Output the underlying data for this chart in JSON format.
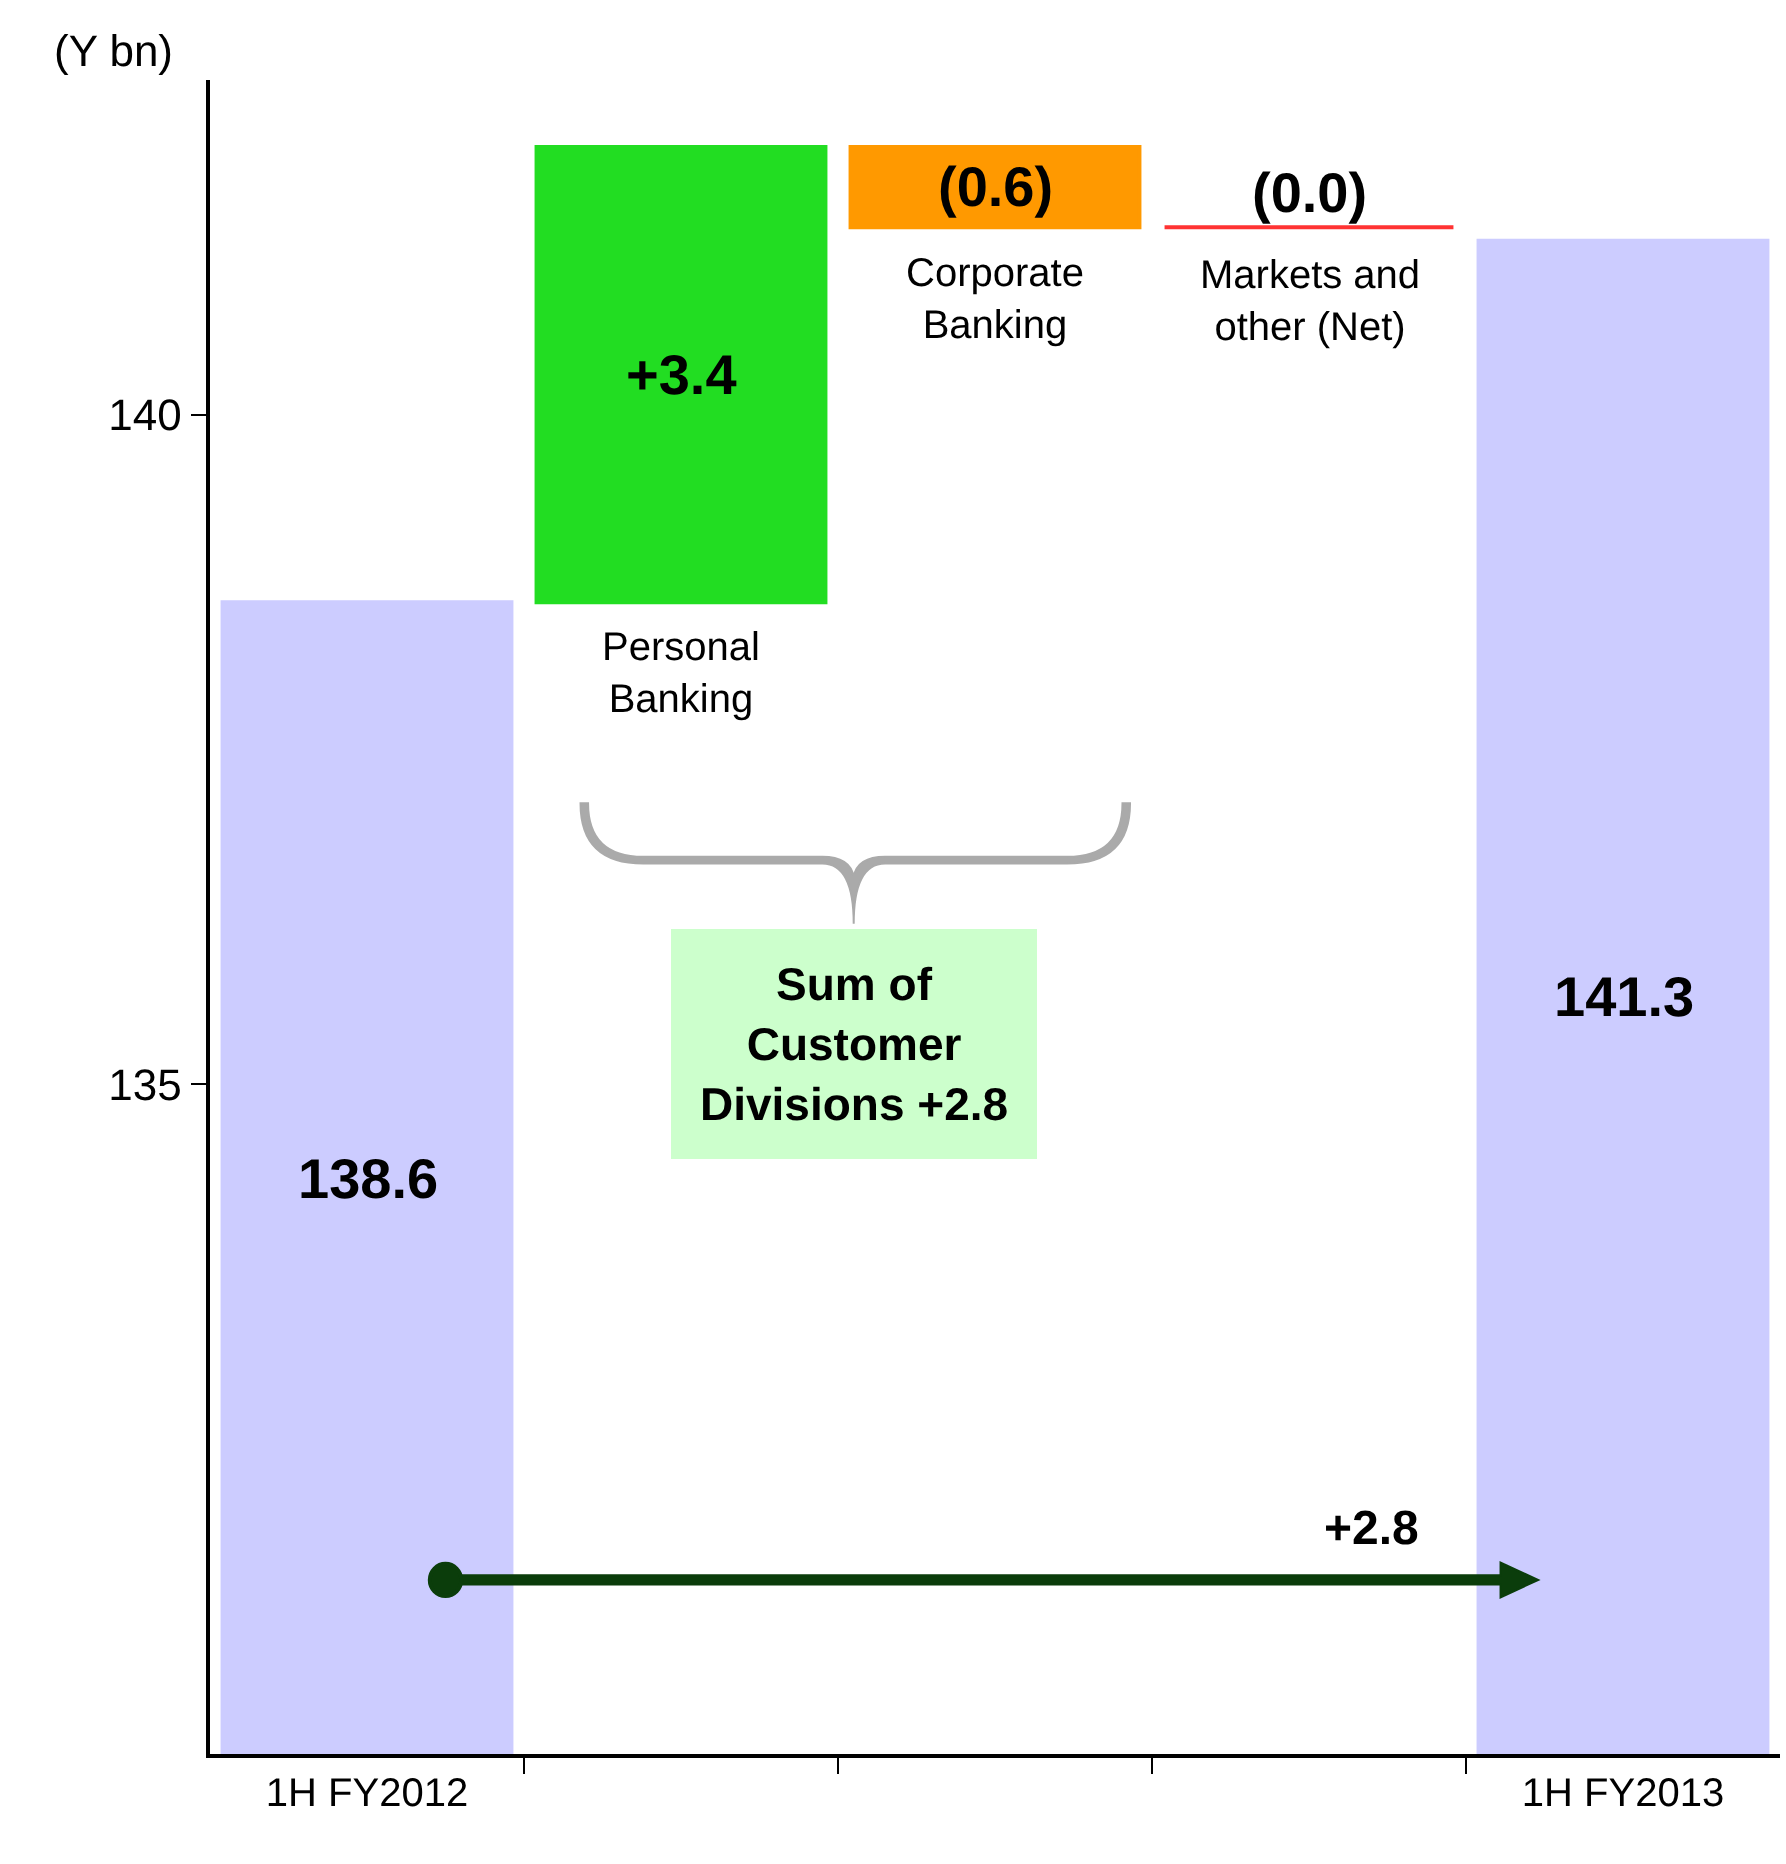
{
  "chart_data": {
    "type": "bar",
    "ylabel": "(Y bn)",
    "categories": [
      "1H FY2012",
      null,
      null,
      null,
      "1H FY2013"
    ],
    "values": [
      138.6,
      3.4,
      -0.6,
      0.0,
      141.3
    ],
    "base": [
      null,
      138.6,
      142.0,
      141.4,
      null
    ],
    "colors": [
      "#ccccff",
      "#22dd22",
      "#ff9900",
      "#ff3333",
      "#ccccff"
    ],
    "value_labels": [
      "138.6",
      "+3.4",
      "(0.6)",
      "(0.0)",
      "141.3"
    ],
    "ylim": [
      130,
      142.5
    ],
    "yticks": [
      135,
      140
    ],
    "legend": false,
    "annotations": [
      "Personal Banking",
      "Corporate Banking",
      "Markets and other (Net)",
      "Sum of Customer Divisions +2.8",
      "+2.8"
    ]
  }
}
